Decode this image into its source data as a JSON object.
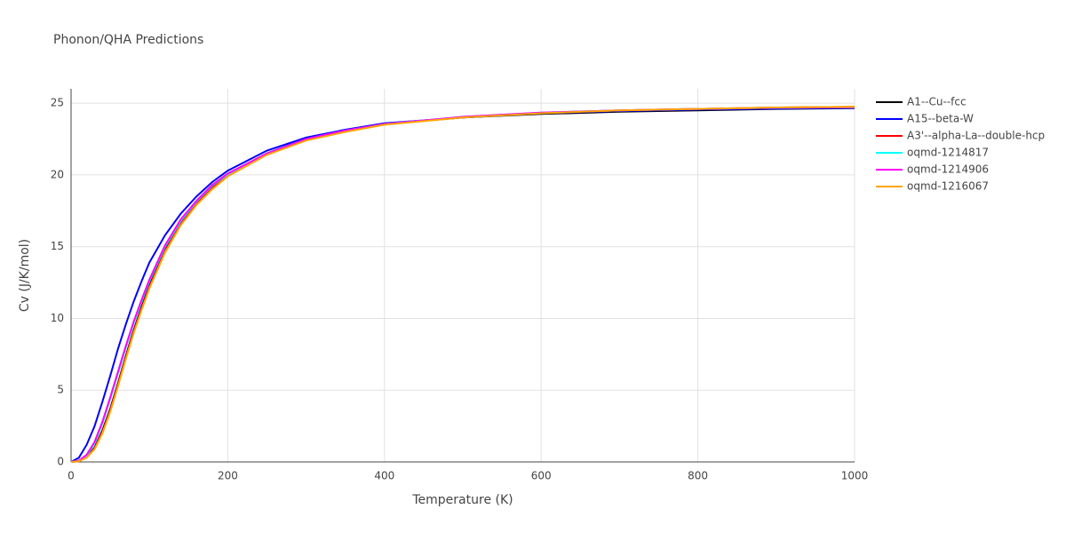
{
  "chart_data": {
    "type": "line",
    "title": "Phonon/QHA Predictions",
    "x_label": "Temperature (K)",
    "y_label": "Cv (J/K/mol)",
    "x": [
      0,
      10,
      20,
      30,
      40,
      50,
      60,
      70,
      80,
      90,
      100,
      120,
      140,
      160,
      180,
      200,
      250,
      300,
      350,
      400,
      500,
      600,
      700,
      800,
      900,
      1000
    ],
    "xlim": [
      0,
      1000
    ],
    "xticks": [
      0,
      200,
      400,
      600,
      800,
      1000
    ],
    "ylim": [
      0,
      26
    ],
    "yticks": [
      0,
      5,
      10,
      15,
      20,
      25
    ],
    "grid": true,
    "series": [
      {
        "name": "A1--Cu--fcc",
        "color": "#000000",
        "values": [
          0,
          0.06,
          0.35,
          1.0,
          2.2,
          3.7,
          5.5,
          7.4,
          9.2,
          10.8,
          12.3,
          14.8,
          16.7,
          18.1,
          19.2,
          20.0,
          21.5,
          22.5,
          23.1,
          23.55,
          24.0,
          24.25,
          24.4,
          24.5,
          24.6,
          24.65
        ]
      },
      {
        "name": "A15--beta-W",
        "color": "#0000ff",
        "values": [
          0,
          0.3,
          1.2,
          2.5,
          4.2,
          6.0,
          7.9,
          9.6,
          11.2,
          12.6,
          13.9,
          15.8,
          17.3,
          18.5,
          19.5,
          20.3,
          21.7,
          22.6,
          23.15,
          23.6,
          24.0,
          24.3,
          24.45,
          24.55,
          24.62,
          24.67
        ]
      },
      {
        "name": "A3'--alpha-La--double-hcp",
        "color": "#ff0000",
        "values": [
          0,
          0.05,
          0.32,
          0.95,
          2.1,
          3.6,
          5.4,
          7.3,
          9.1,
          10.7,
          12.2,
          14.7,
          16.6,
          18.0,
          19.1,
          19.95,
          21.45,
          22.45,
          23.05,
          23.52,
          24.02,
          24.32,
          24.5,
          24.6,
          24.7,
          24.75
        ]
      },
      {
        "name": "oqmd-1214817",
        "color": "#00ffff",
        "values": [
          0,
          0.08,
          0.45,
          1.3,
          2.7,
          4.4,
          6.2,
          8.0,
          9.7,
          11.2,
          12.6,
          15.0,
          16.8,
          18.15,
          19.25,
          20.05,
          21.5,
          22.5,
          23.1,
          23.55,
          24.05,
          24.35,
          24.5,
          24.6,
          24.68,
          24.72
        ]
      },
      {
        "name": "oqmd-1214906",
        "color": "#ff00ff",
        "values": [
          0,
          0.09,
          0.5,
          1.4,
          2.8,
          4.5,
          6.3,
          8.1,
          9.8,
          11.3,
          12.7,
          15.1,
          16.9,
          18.2,
          19.3,
          20.1,
          21.5,
          22.5,
          23.1,
          23.55,
          24.05,
          24.35,
          24.5,
          24.6,
          24.68,
          24.72
        ]
      },
      {
        "name": "oqmd-1216067",
        "color": "#ffa500",
        "values": [
          0,
          0.05,
          0.3,
          0.9,
          2.0,
          3.5,
          5.3,
          7.2,
          9.0,
          10.6,
          12.1,
          14.6,
          16.5,
          17.9,
          19.0,
          19.9,
          21.4,
          22.4,
          23.0,
          23.5,
          24.0,
          24.3,
          24.5,
          24.6,
          24.7,
          24.75
        ]
      }
    ]
  }
}
